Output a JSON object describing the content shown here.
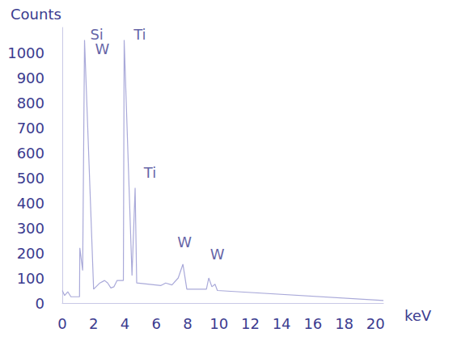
{
  "chart_data": {
    "type": "line",
    "x_label": "keV",
    "y_label": "Counts",
    "color": "#a9a9d9",
    "x": [
      0,
      0.15,
      0.35,
      0.55,
      1.1,
      1.12,
      1.3,
      1.42,
      2.0,
      2.4,
      2.7,
      2.9,
      3.1,
      3.3,
      3.5,
      3.9,
      3.95,
      4.45,
      4.65,
      4.75,
      6.3,
      6.6,
      7.0,
      7.4,
      7.7,
      7.95,
      9.2,
      9.35,
      9.55,
      9.75,
      9.9,
      20.5
    ],
    "values": [
      50,
      30,
      45,
      25,
      25,
      220,
      130,
      1050,
      55,
      80,
      90,
      80,
      60,
      65,
      90,
      90,
      1050,
      110,
      460,
      80,
      70,
      80,
      72,
      100,
      155,
      55,
      55,
      100,
      65,
      75,
      50,
      10
    ],
    "xlim": [
      0,
      20.5
    ],
    "xticks": [
      0,
      2,
      4,
      6,
      8,
      10,
      12,
      14,
      16,
      18,
      20
    ],
    "ylim": [
      0,
      1100
    ],
    "yticks": [
      0,
      100,
      200,
      300,
      400,
      500,
      600,
      700,
      800,
      900,
      1000
    ],
    "grid": false,
    "annotations": [
      {
        "text": "Si",
        "x": 2.2,
        "y": 1074
      },
      {
        "text": "W",
        "x": 2.55,
        "y": 1016
      },
      {
        "text": "Ti",
        "x": 4.95,
        "y": 1074
      },
      {
        "text": "Ti",
        "x": 5.6,
        "y": 522
      },
      {
        "text": "W",
        "x": 7.8,
        "y": 242
      },
      {
        "text": "W",
        "x": 9.9,
        "y": 194
      }
    ]
  }
}
